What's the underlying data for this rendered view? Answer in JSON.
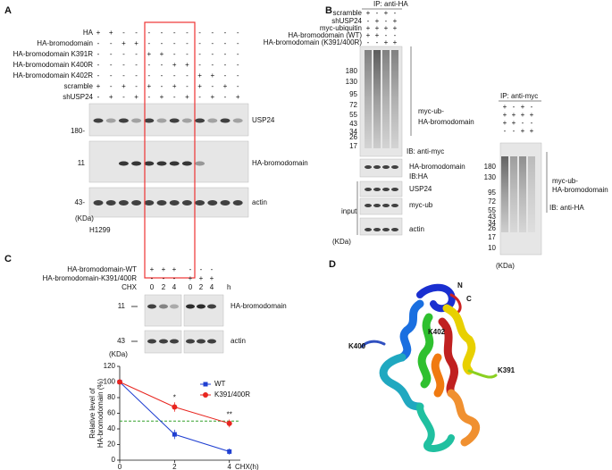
{
  "panels": {
    "A": {
      "label": "A",
      "rows": [
        {
          "name": "HA",
          "signs": [
            "+",
            "+",
            "-",
            "-",
            "-",
            "-",
            "-",
            "-",
            "-",
            "-",
            "-",
            "-"
          ]
        },
        {
          "name": "HA-bromodomain",
          "signs": [
            "-",
            "-",
            "+",
            "+",
            "-",
            "-",
            "-",
            "-",
            "-",
            "-",
            "-",
            "-"
          ]
        },
        {
          "name": "HA-bromodomain K391R",
          "signs": [
            "-",
            "-",
            "-",
            "-",
            "+",
            "+",
            "-",
            "-",
            "-",
            "-",
            "-",
            "-"
          ]
        },
        {
          "name": "HA-bromodomain K400R",
          "signs": [
            "-",
            "-",
            "-",
            "-",
            "-",
            "-",
            "+",
            "+",
            "-",
            "-",
            "-",
            "-"
          ]
        },
        {
          "name": "HA-bromodomain K402R",
          "signs": [
            "-",
            "-",
            "-",
            "-",
            "-",
            "-",
            "-",
            "-",
            "+",
            "+",
            "-",
            "-"
          ]
        },
        {
          "name": "scramble",
          "signs": [
            "+",
            "-",
            "+",
            "-",
            "+",
            "-",
            "+",
            "-",
            "+",
            "-",
            "+",
            "-"
          ]
        },
        {
          "name": "shUSP24",
          "signs": [
            "-",
            "+",
            "-",
            "+",
            "-",
            "+",
            "-",
            "+",
            "-",
            "+",
            "-",
            "+"
          ]
        }
      ],
      "blots": [
        {
          "name": "USP24",
          "marker": "180-"
        },
        {
          "name": "HA-bromodomain",
          "marker": "11"
        },
        {
          "name": "actin",
          "marker": "43-"
        }
      ],
      "unit": "(KDa)",
      "cell_line": "H1299"
    },
    "B": {
      "label": "B",
      "ip": "IP: anti-HA",
      "rows": [
        {
          "name": "scramble",
          "signs": [
            "+",
            "-",
            "+",
            "-"
          ]
        },
        {
          "name": "shUSP24",
          "signs": [
            "-",
            "+",
            "-",
            "+"
          ]
        },
        {
          "name": "myc-ubiquitin",
          "signs": [
            "+",
            "+",
            "+",
            "+"
          ]
        },
        {
          "name": "HA-bromodomain (WT)",
          "signs": [
            "+",
            "+",
            "-",
            "-"
          ]
        },
        {
          "name": "HA-bromodomain (K391/400R)",
          "signs": [
            "-",
            "-",
            "+",
            "+"
          ]
        }
      ],
      "markers": [
        "180",
        "130",
        "95",
        "72",
        "55",
        "43",
        "34",
        "26",
        "17"
      ],
      "band_label": [
        "myc-ub-",
        "HA-bromodomain"
      ],
      "ib": "IB: anti-myc",
      "lower_blots": [
        "HA-bromodomain",
        "USP24",
        "myc-ub",
        "actin"
      ],
      "lower_ib": "IB:HA",
      "input": "input",
      "unit": "(KDa)",
      "right": {
        "ip": "IP: anti-myc",
        "signs": [
          [
            "+",
            "-",
            "+",
            "-"
          ],
          [
            "+",
            "+",
            "+",
            "+"
          ],
          [
            "+",
            "+",
            "-",
            "-"
          ],
          [
            "-",
            "-",
            "+",
            "+"
          ]
        ],
        "markers": [
          "180",
          "130",
          "95",
          "72",
          "55",
          "43",
          "34",
          "26",
          "17",
          "10"
        ],
        "band_label": [
          "myc-ub-",
          "HA-bromodomain"
        ],
        "ib": "IB: anti-HA",
        "unit": "(KDa)"
      }
    },
    "C": {
      "label": "C",
      "rows": [
        {
          "name": "HA-bromodomain-WT",
          "signs": [
            "+",
            "+",
            "+",
            "-",
            "-",
            "-"
          ]
        },
        {
          "name": "HA-bromodomain-K391/400R",
          "signs": [
            "-",
            "-",
            "-",
            "+",
            "+",
            "+"
          ]
        },
        {
          "name": "CHX",
          "signs": [
            "0",
            "2",
            "4",
            "0",
            "2",
            "4"
          ]
        }
      ],
      "time_unit": "h",
      "blots": [
        {
          "name": "HA-bromodomain",
          "marker": "11"
        },
        {
          "name": "actin",
          "marker": "43"
        }
      ],
      "unit": "(KDa)"
    },
    "D": {
      "label": "D",
      "termini": [
        "N",
        "C"
      ],
      "residues": [
        "K400",
        "K402",
        "K391"
      ]
    }
  },
  "chart_data": {
    "type": "line",
    "x": [
      0,
      2,
      4
    ],
    "xlim": [
      0,
      4.4
    ],
    "xticks": [
      0,
      2,
      4
    ],
    "xlabel": "CHX(h)",
    "ylim": [
      0,
      120
    ],
    "yticks": [
      0,
      20,
      40,
      60,
      80,
      100,
      120
    ],
    "ylabel": [
      "Relative level of",
      "HA-bromodomain (%)"
    ],
    "reference_line": {
      "value": 50,
      "color": "#33a02c"
    },
    "series": [
      {
        "name": "WT",
        "color": "#1f3fd1",
        "marker": "square",
        "values": [
          100,
          33,
          11
        ],
        "errors": [
          0,
          6,
          4
        ]
      },
      {
        "name": "K391/400R",
        "color": "#e8251f",
        "marker": "circle",
        "values": [
          100,
          68,
          47
        ],
        "errors": [
          0,
          6,
          5
        ]
      }
    ],
    "annotations": [
      "*",
      "**"
    ]
  }
}
